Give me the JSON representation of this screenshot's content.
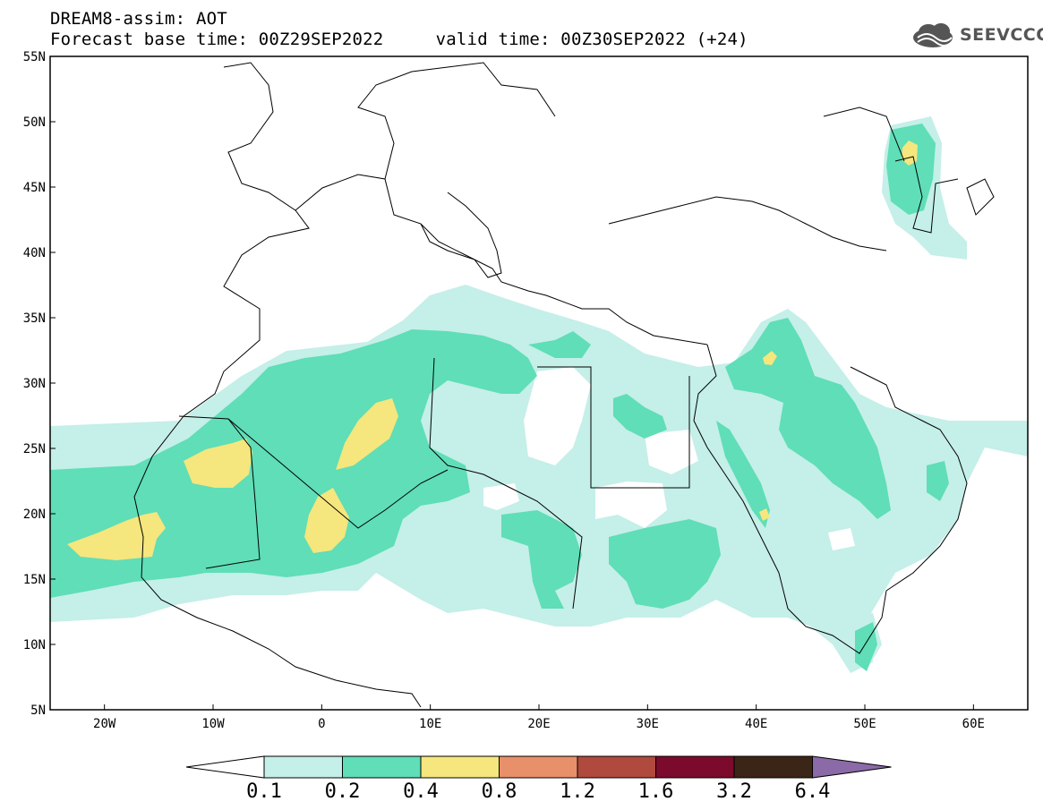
{
  "header": {
    "model_line": "DREAM8-assim: AOT",
    "time_line": "Forecast base time: 00Z29SEP2022     valid time: 00Z30SEP2022 (+24)"
  },
  "logo": {
    "text": "SEEVCCC",
    "icon": "cloud-logo-icon"
  },
  "map": {
    "lon_range": [
      -25,
      65
    ],
    "lat_range": [
      5,
      55
    ],
    "lat_labels": [
      "5N",
      "10N",
      "15N",
      "20N",
      "25N",
      "30N",
      "35N",
      "40N",
      "45N",
      "50N",
      "55N"
    ],
    "lon_labels": [
      "20W",
      "10W",
      "0",
      "10E",
      "20E",
      "30E",
      "40E",
      "50E",
      "60E"
    ]
  },
  "colorbar": {
    "labels": [
      "0.1",
      "0.2",
      "0.4",
      "0.8",
      "1.2",
      "1.6",
      "3.2",
      "6.4"
    ],
    "colors": [
      "#ffffff",
      "#c5efe9",
      "#5fdeb7",
      "#f5e67d",
      "#e8906a",
      "#b0493e",
      "#7c0a2d",
      "#3b2516",
      "#8b6aa8"
    ]
  },
  "field_colors": {
    "low": "#c5efe9",
    "mid": "#5fdeb7",
    "high": "#f5e67d"
  }
}
